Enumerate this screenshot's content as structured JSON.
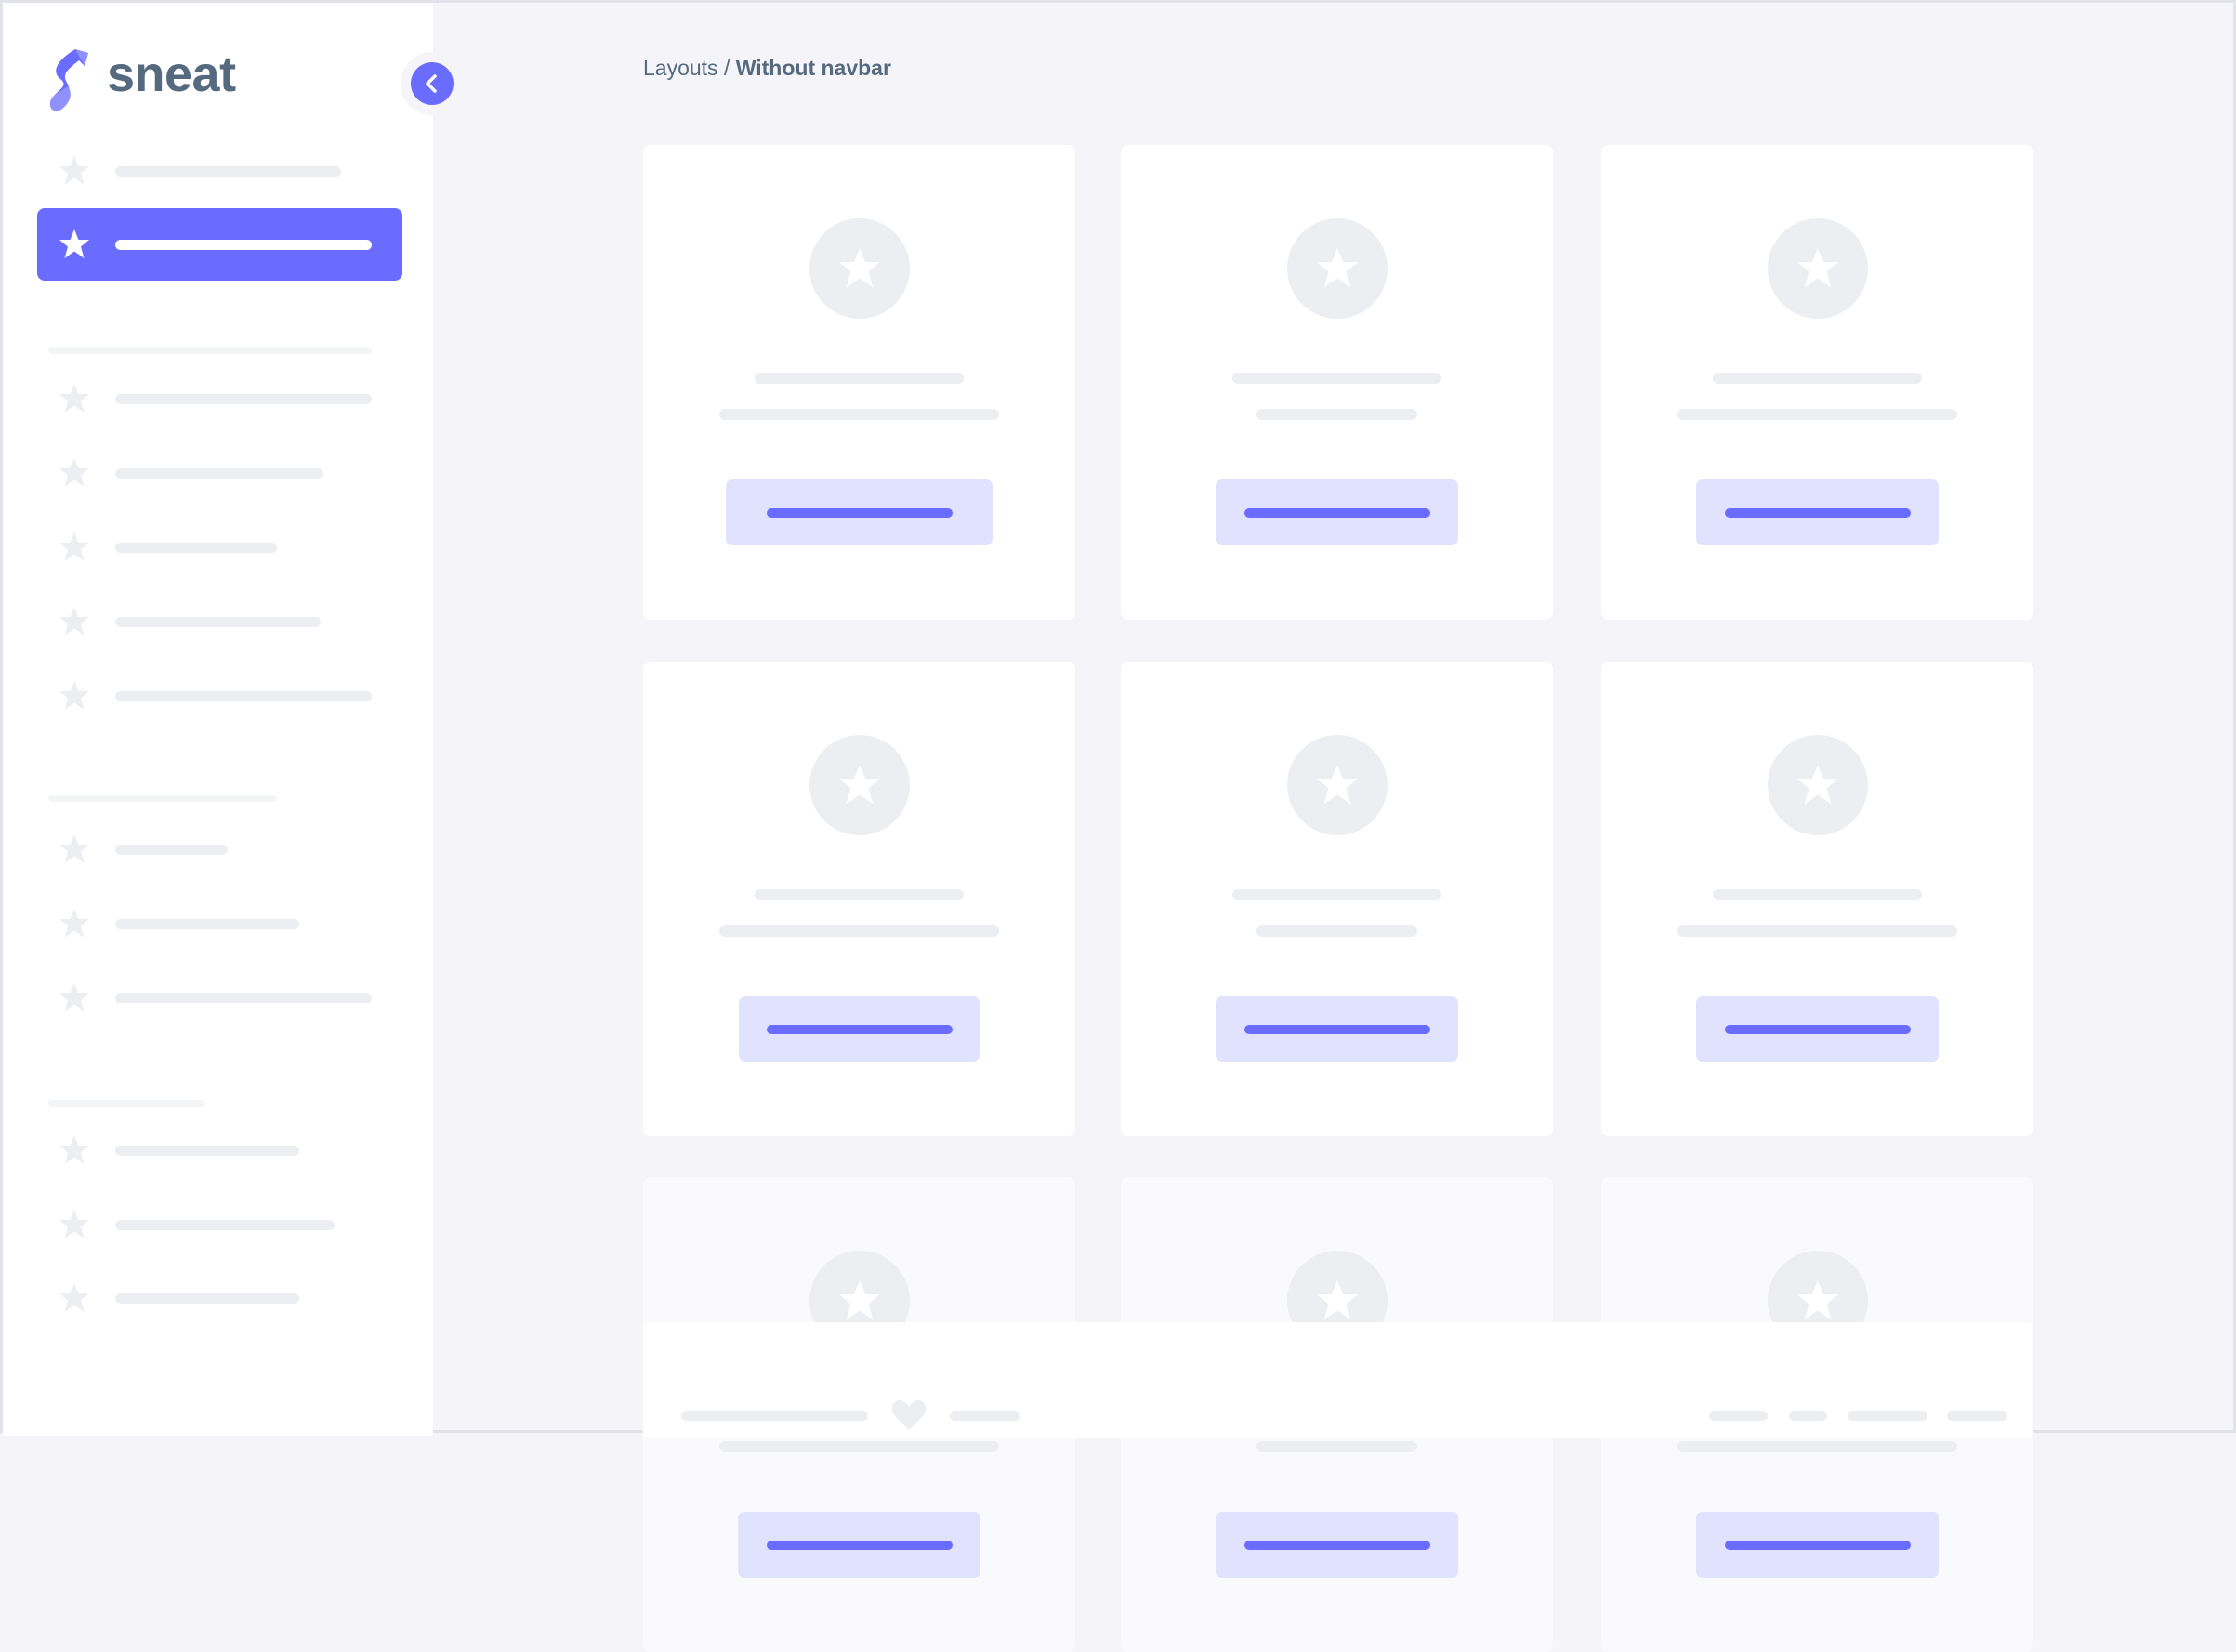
{
  "brand": {
    "name": "sneat",
    "logo_color": "#696cff"
  },
  "breadcrumb": {
    "parent": "Layouts",
    "separator": "/",
    "current": "Without navbar"
  },
  "colors": {
    "primary": "#696cff",
    "primary_light": "#e1e2fe",
    "placeholder": "#eceef1",
    "background": "#f5f5f9",
    "text": "#566a7f"
  },
  "sidebar": {
    "collapse_icon": "chevron-left-icon",
    "active_index": 1,
    "item_icon": "star-icon"
  },
  "footer": {
    "icon": "heart-icon"
  }
}
